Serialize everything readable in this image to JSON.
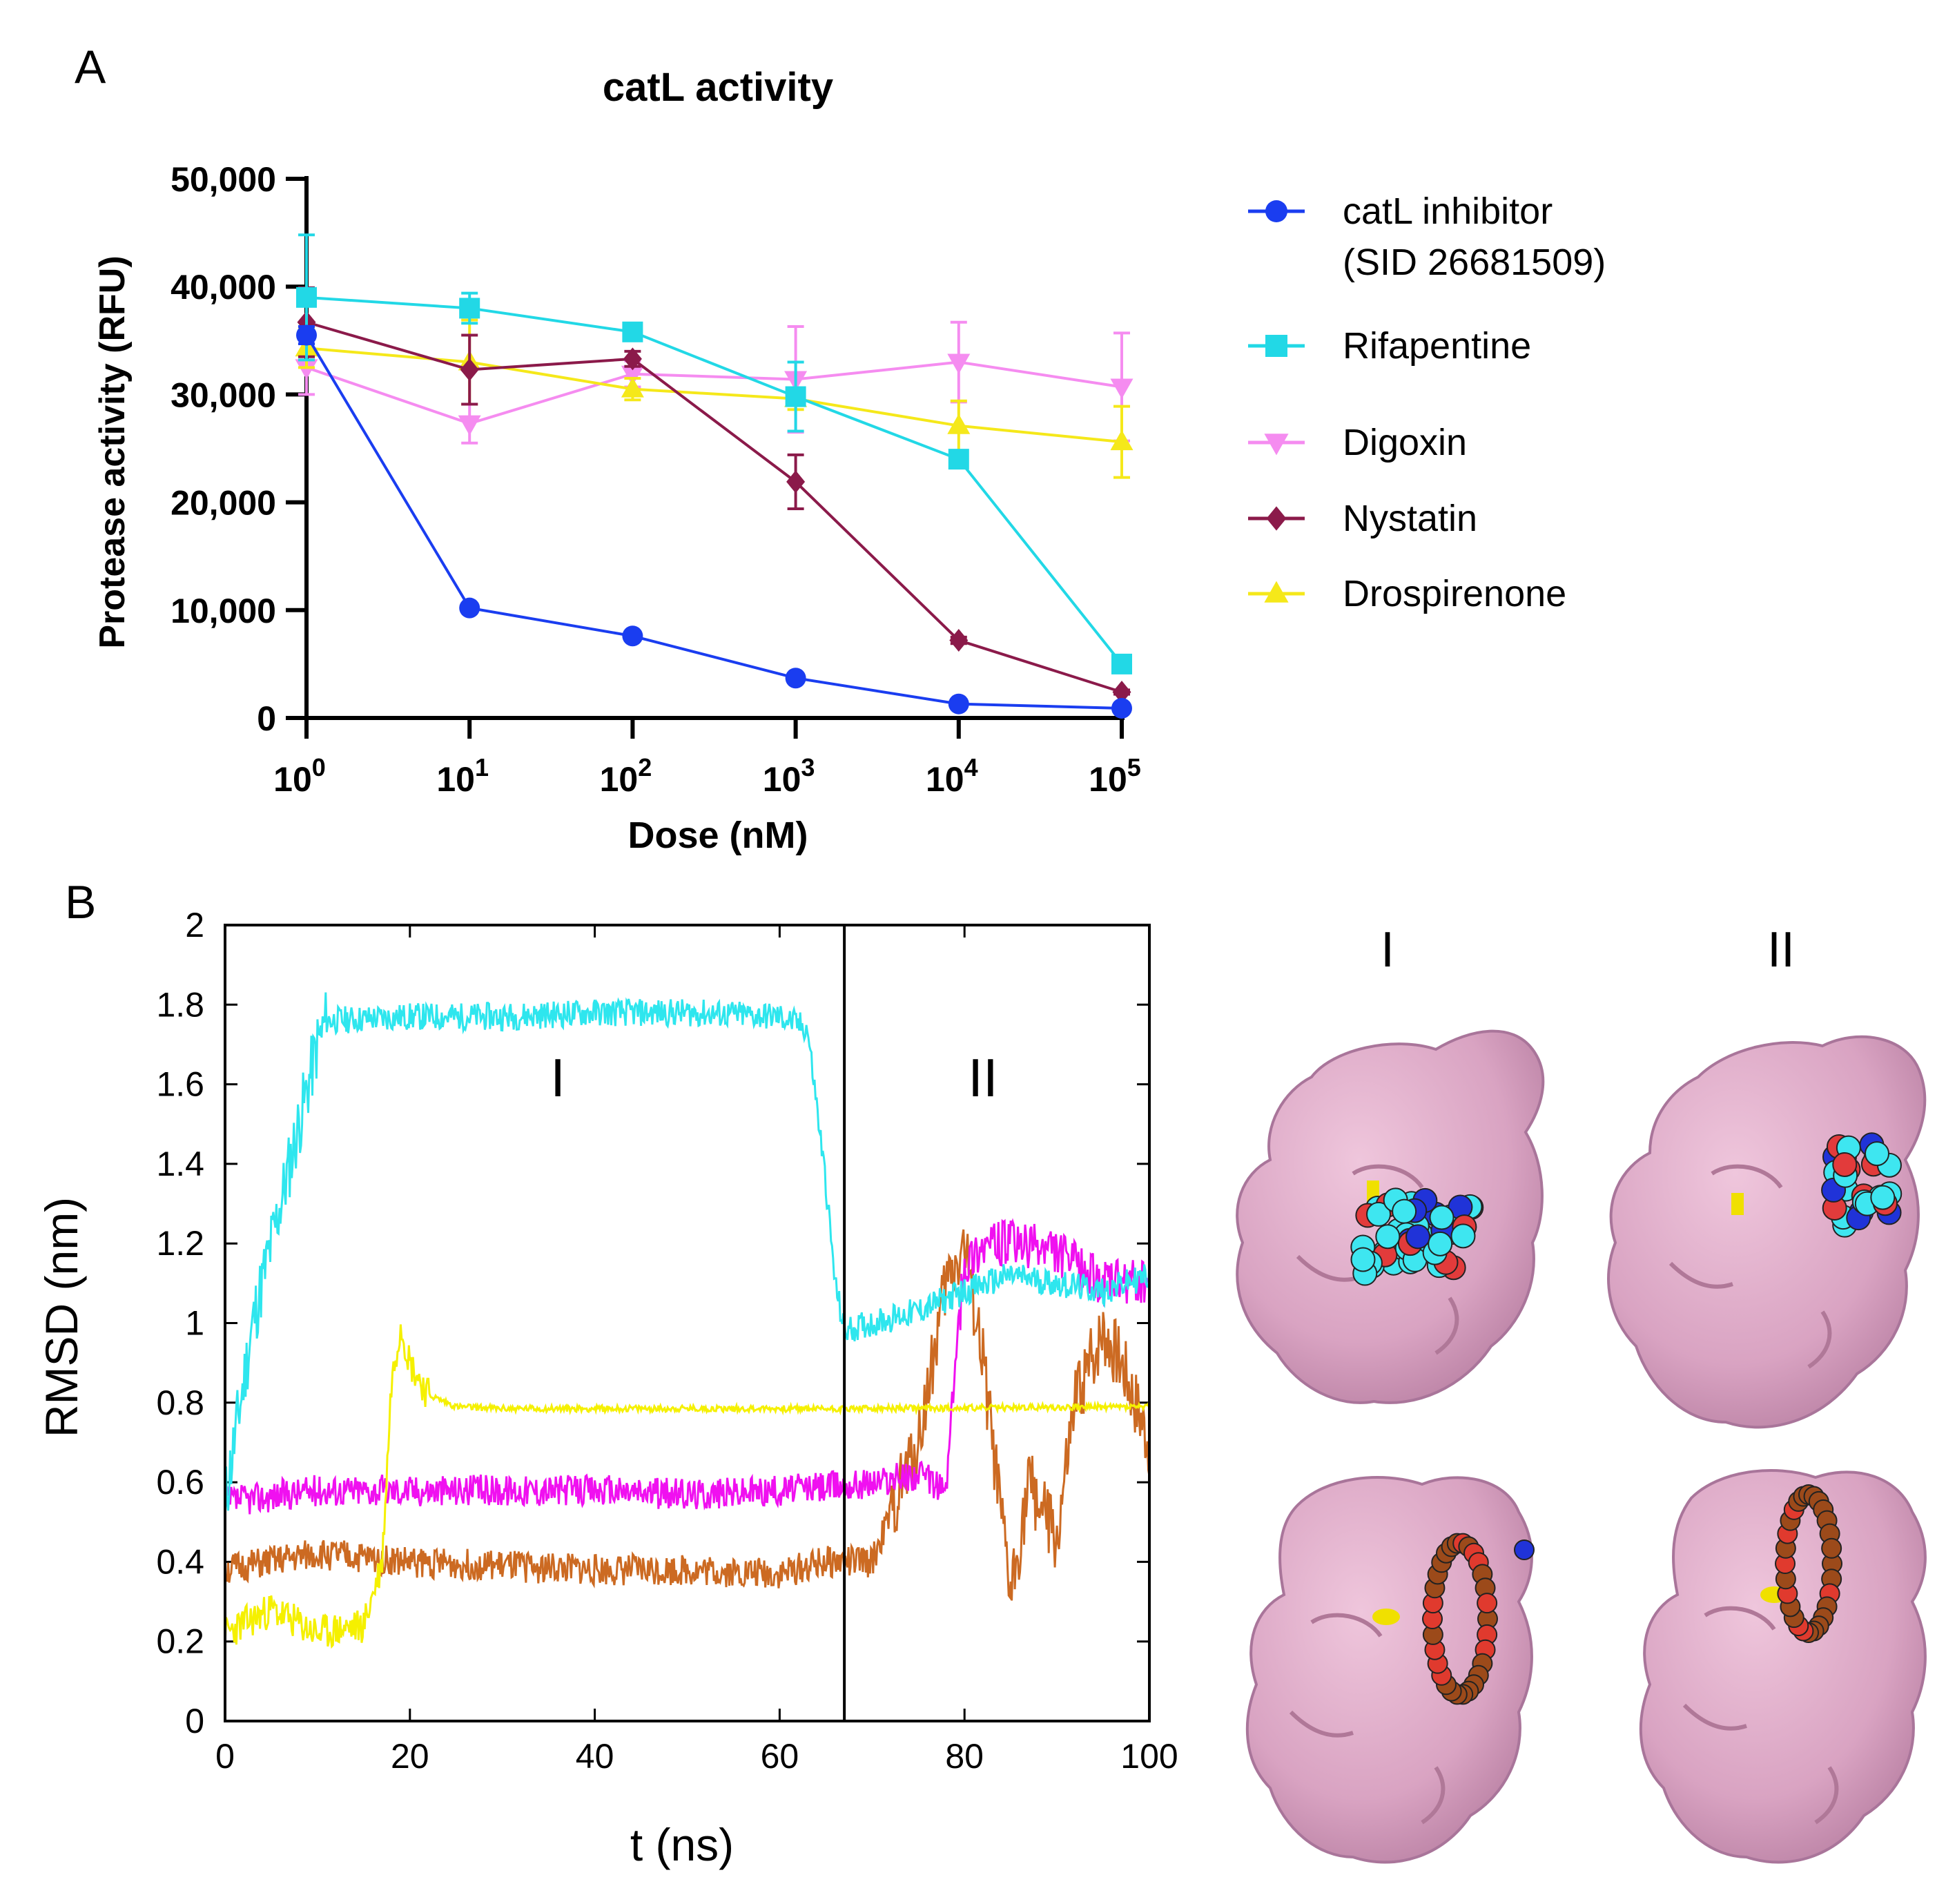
{
  "panel_labels": {
    "a": "A",
    "b": "B"
  },
  "colors": {
    "catl_inhibitor": "#1a3df0",
    "rifapentine": "#22d8e6",
    "digoxin": "#f58cf0",
    "nystatin": "#8b1a4a",
    "drospirenone": "#f5e81a",
    "md_cyan": "#2ee6ee",
    "md_yellow": "#f5f000",
    "md_magenta": "#f010f0",
    "md_orange": "#cc6a22",
    "protein": "#d9a3c2",
    "axis": "#000000"
  },
  "chart_data": [
    {
      "id": "panel-a",
      "type": "line",
      "title": "catL activity",
      "xlabel": "Dose (nM)",
      "ylabel": "Protease activity (RFU)",
      "x_scale": "log10",
      "x": [
        1,
        10,
        100,
        1000,
        10000,
        100000
      ],
      "xtick_base": "10",
      "xtick_exponents": [
        "0",
        "1",
        "2",
        "3",
        "4",
        "5"
      ],
      "ylim": [
        0,
        50000
      ],
      "yticks": [
        0,
        10000,
        20000,
        30000,
        40000,
        50000
      ],
      "ytick_labels": [
        "0",
        "10,000",
        "20,000",
        "30,000",
        "40,000",
        "50,000"
      ],
      "legend_position": "right",
      "series": [
        {
          "name": "catL inhibitor",
          "name_line2": "(SID 26681509)",
          "marker": "circle",
          "color_key": "catl_inhibitor",
          "values": [
            35500,
            10200,
            7600,
            3700,
            1300,
            900
          ],
          "errors": [
            800,
            200,
            200,
            200,
            100,
            100
          ]
        },
        {
          "name": "Rifapentine",
          "marker": "square",
          "color_key": "rifapentine",
          "values": [
            39000,
            38000,
            35800,
            29800,
            24000,
            5000
          ],
          "errors": [
            5800,
            1400,
            500,
            3200,
            800,
            500
          ]
        },
        {
          "name": "Digoxin",
          "marker": "triangle-down",
          "color_key": "digoxin",
          "values": [
            32500,
            27300,
            31900,
            31400,
            33000,
            30700
          ],
          "errors": [
            2500,
            1800,
            1200,
            4900,
            3700,
            5000
          ]
        },
        {
          "name": "Nystatin",
          "marker": "diamond",
          "color_key": "nystatin",
          "values": [
            36700,
            32300,
            33300,
            21900,
            7200,
            2400
          ],
          "errors": [
            3200,
            3200,
            700,
            2500,
            300,
            200
          ]
        },
        {
          "name": "Drospirenone",
          "marker": "triangle-up",
          "color_key": "drospirenone",
          "values": [
            34300,
            33000,
            30500,
            29600,
            27100,
            25600
          ],
          "errors": [
            1800,
            3900,
            1000,
            1000,
            2300,
            3300
          ]
        }
      ]
    },
    {
      "id": "panel-b",
      "type": "line",
      "title": "",
      "xlabel": "t (ns)",
      "ylabel": "RMSD (nm)",
      "xlim": [
        0,
        100
      ],
      "ylim": [
        0,
        2
      ],
      "xticks": [
        0,
        20,
        40,
        60,
        80,
        100
      ],
      "xtick_labels": [
        "0",
        "20",
        "40",
        "60",
        "80",
        "100"
      ],
      "yticks": [
        0,
        0.2,
        0.4,
        0.6,
        0.8,
        1,
        1.2,
        1.4,
        1.6,
        1.8,
        2
      ],
      "ytick_labels": [
        "0",
        "0.2",
        "0.4",
        "0.6",
        "0.8",
        "1",
        "1.2",
        "1.4",
        "1.6",
        "1.8",
        "2"
      ],
      "vline_x": 67,
      "region_labels": [
        {
          "text": "I",
          "x": 36,
          "y": 1.57
        },
        {
          "text": "II",
          "x": 82,
          "y": 1.57
        }
      ],
      "series": [
        {
          "name": "trace-cyan",
          "color_key": "md_cyan",
          "noise": 0.035,
          "seed": 11,
          "t": [
            0,
            1,
            2,
            3,
            4,
            5,
            6,
            7,
            8,
            9,
            10,
            11,
            20,
            30,
            40,
            50,
            60,
            63,
            64,
            65,
            66,
            67,
            70,
            75,
            80,
            85,
            90,
            95,
            100
          ],
          "y": [
            0.55,
            0.7,
            0.85,
            1.0,
            1.1,
            1.2,
            1.3,
            1.4,
            1.5,
            1.6,
            1.7,
            1.76,
            1.77,
            1.77,
            1.78,
            1.78,
            1.77,
            1.74,
            1.55,
            1.35,
            1.1,
            0.98,
            1.0,
            1.03,
            1.08,
            1.12,
            1.1,
            1.08,
            1.12
          ]
        },
        {
          "name": "trace-yellow",
          "color_key": "md_yellow",
          "noise": 0.045,
          "seed": 23,
          "noise_until": 18,
          "t": [
            0,
            5,
            10,
            15,
            17,
            18,
            19,
            20,
            22,
            25,
            30,
            50,
            70,
            100
          ],
          "y": [
            0.22,
            0.28,
            0.22,
            0.24,
            0.4,
            0.85,
            1.0,
            0.9,
            0.82,
            0.79,
            0.785,
            0.785,
            0.785,
            0.79
          ]
        },
        {
          "name": "trace-magenta",
          "color_key": "md_magenta",
          "noise": 0.04,
          "seed": 37,
          "t": [
            0,
            10,
            20,
            30,
            40,
            50,
            60,
            70,
            75,
            78,
            79,
            80,
            82,
            85,
            90,
            95,
            100
          ],
          "y": [
            0.55,
            0.58,
            0.58,
            0.58,
            0.58,
            0.57,
            0.58,
            0.6,
            0.62,
            0.58,
            0.9,
            1.15,
            1.2,
            1.2,
            1.18,
            1.1,
            1.1
          ]
        },
        {
          "name": "trace-orange",
          "color_key": "md_orange",
          "noise": 0.04,
          "seed": 51,
          "t": [
            0,
            5,
            10,
            20,
            30,
            40,
            50,
            60,
            65,
            70,
            75,
            78,
            80,
            82,
            84,
            85,
            87,
            90,
            92,
            95,
            97,
            100
          ],
          "y": [
            0.38,
            0.4,
            0.42,
            0.4,
            0.39,
            0.38,
            0.38,
            0.37,
            0.4,
            0.4,
            0.7,
            1.1,
            1.2,
            0.9,
            0.5,
            0.32,
            0.6,
            0.45,
            0.8,
            0.98,
            0.9,
            0.7
          ]
        }
      ]
    }
  ],
  "structures": {
    "columns": [
      "I",
      "II"
    ]
  }
}
